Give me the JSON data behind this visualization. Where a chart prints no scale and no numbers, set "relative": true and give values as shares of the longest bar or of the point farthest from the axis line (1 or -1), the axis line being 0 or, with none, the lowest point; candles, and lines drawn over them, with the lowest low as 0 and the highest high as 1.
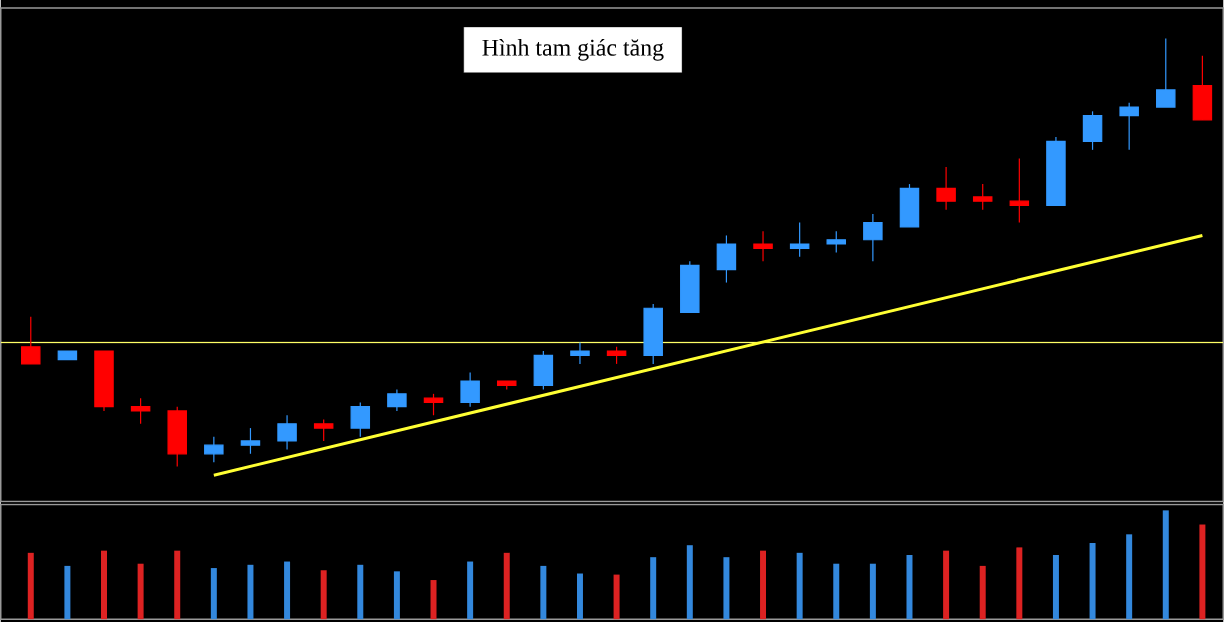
{
  "chart_data": [
    {
      "type": "candlestick",
      "title": "Hình tam giác tăng",
      "relative": true,
      "categories": [
        null,
        null,
        null,
        null,
        null,
        null,
        null,
        null,
        null,
        null,
        null,
        null,
        null,
        null,
        null,
        null,
        null,
        null,
        null,
        null,
        null,
        null,
        null,
        null,
        null,
        null,
        null,
        null,
        null,
        null,
        null,
        null,
        null
      ],
      "ohlc": [
        [
          0.28,
          0.35,
          0.24,
          0.24
        ],
        [
          0.25,
          0.27,
          0.25,
          0.27
        ],
        [
          0.27,
          0.27,
          0.13,
          0.14
        ],
        [
          0.14,
          0.16,
          0.1,
          0.13
        ],
        [
          0.13,
          0.14,
          0,
          0.03
        ],
        [
          0.03,
          0.07,
          0.01,
          0.05
        ],
        [
          0.05,
          0.09,
          0.03,
          0.06
        ],
        [
          0.06,
          0.12,
          0.04,
          0.1
        ],
        [
          0.1,
          0.11,
          0.06,
          0.09
        ],
        [
          0.09,
          0.15,
          0.07,
          0.14
        ],
        [
          0.14,
          0.18,
          0.13,
          0.17
        ],
        [
          0.16,
          0.17,
          0.12,
          0.15
        ],
        [
          0.15,
          0.22,
          0.14,
          0.2
        ],
        [
          0.2,
          0.2,
          0.18,
          0.19
        ],
        [
          0.19,
          0.27,
          0.18,
          0.26
        ],
        [
          0.26,
          0.29,
          0.24,
          0.27
        ],
        [
          0.27,
          0.28,
          0.24,
          0.26
        ],
        [
          0.26,
          0.38,
          0.24,
          0.37
        ],
        [
          0.36,
          0.48,
          0.36,
          0.47
        ],
        [
          0.46,
          0.54,
          0.43,
          0.52
        ],
        [
          0.52,
          0.55,
          0.48,
          0.51
        ],
        [
          0.51,
          0.57,
          0.49,
          0.52
        ],
        [
          0.52,
          0.55,
          0.5,
          0.53
        ],
        [
          0.53,
          0.59,
          0.48,
          0.57
        ],
        [
          0.56,
          0.66,
          0.56,
          0.65
        ],
        [
          0.65,
          0.7,
          0.6,
          0.62
        ],
        [
          0.63,
          0.66,
          0.6,
          0.62
        ],
        [
          0.62,
          0.72,
          0.57,
          0.61
        ],
        [
          0.61,
          0.77,
          0.61,
          0.76
        ],
        [
          0.76,
          0.83,
          0.74,
          0.82
        ],
        [
          0.82,
          0.85,
          0.74,
          0.84
        ],
        [
          0.84,
          1,
          0.84,
          0.88
        ],
        [
          0.89,
          0.96,
          0.81,
          0.81
        ]
      ],
      "colors": [
        "#ff0000",
        "#3399ff",
        "#ff0000",
        "#ff0000",
        "#ff0000",
        "#3399ff",
        "#3399ff",
        "#3399ff",
        "#ff0000",
        "#3399ff",
        "#3399ff",
        "#ff0000",
        "#3399ff",
        "#ff0000",
        "#3399ff",
        "#3399ff",
        "#ff0000",
        "#3399ff",
        "#3399ff",
        "#3399ff",
        "#ff0000",
        "#3399ff",
        "#3399ff",
        "#3399ff",
        "#3399ff",
        "#ff0000",
        "#ff0000",
        "#ff0000",
        "#3399ff",
        "#3399ff",
        "#3399ff",
        "#3399ff",
        "#ff0000"
      ],
      "series": [
        {
          "type": "line",
          "color": "#ffff33",
          "values": [
            null,
            null,
            null,
            null,
            null,
            -0.02,
            null,
            null,
            null,
            null,
            null,
            null,
            null,
            null,
            null,
            null,
            null,
            null,
            null,
            null,
            null,
            null,
            null,
            null,
            null,
            null,
            null,
            null,
            null,
            null,
            null,
            null,
            0.54
          ]
        }
      ],
      "ref_lines": [
        {
          "axis": "y",
          "value": 0.29,
          "color": "#ffff66",
          "line_style": "solid"
        }
      ]
    },
    {
      "type": "bar",
      "relative": true,
      "categories": [
        null,
        null,
        null,
        null,
        null,
        null,
        null,
        null,
        null,
        null,
        null,
        null,
        null,
        null,
        null,
        null,
        null,
        null,
        null,
        null,
        null,
        null,
        null,
        null,
        null,
        null,
        null,
        null,
        null,
        null,
        null,
        null,
        null
      ],
      "values": [
        0.61,
        0.49,
        0.63,
        0.51,
        0.63,
        0.47,
        0.5,
        0.53,
        0.45,
        0.5,
        0.44,
        0.36,
        0.53,
        0.61,
        0.49,
        0.42,
        0.41,
        0.57,
        0.68,
        0.57,
        0.63,
        0.61,
        0.51,
        0.51,
        0.59,
        0.63,
        0.49,
        0.66,
        0.59,
        0.7,
        0.78,
        1,
        0.87
      ],
      "colors": [
        "#dd2222",
        "#3388dd",
        "#dd2222",
        "#dd2222",
        "#dd2222",
        "#3388dd",
        "#3388dd",
        "#3388dd",
        "#dd2222",
        "#3388dd",
        "#3388dd",
        "#dd2222",
        "#3388dd",
        "#dd2222",
        "#3388dd",
        "#3388dd",
        "#dd2222",
        "#3388dd",
        "#3388dd",
        "#3388dd",
        "#dd2222",
        "#3388dd",
        "#3388dd",
        "#3388dd",
        "#3388dd",
        "#dd2222",
        "#dd2222",
        "#dd2222",
        "#3388dd",
        "#3388dd",
        "#3388dd",
        "#3388dd",
        "#dd2222"
      ]
    }
  ]
}
